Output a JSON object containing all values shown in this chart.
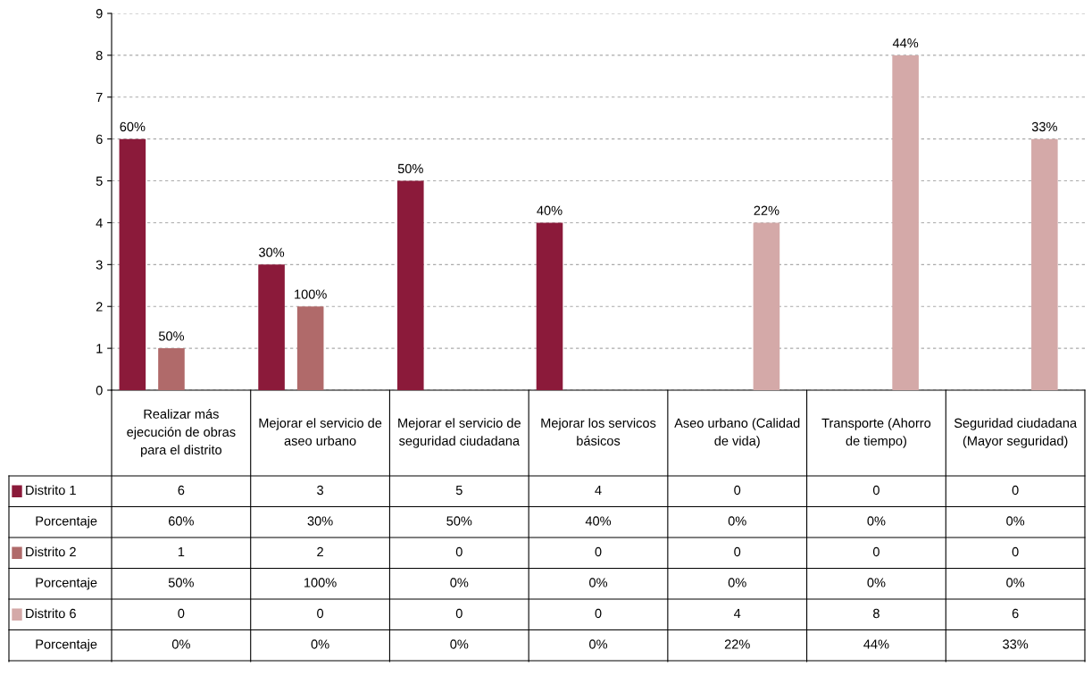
{
  "chart_data": {
    "type": "bar",
    "categories": [
      "Realizar más ejecución de obras para el distrito",
      "Mejorar el servicio de aseo urbano",
      "Mejorar el servicio de seguridad ciudadana",
      "Mejorar los servicos básicos",
      "Aseo urbano (Calidad de vida)",
      "Transporte (Ahorro de tiempo)",
      "Seguridad ciudadana (Mayor seguridad)"
    ],
    "series": [
      {
        "name": "Distrito 1",
        "color": "#8b1a3a",
        "values": [
          6,
          3,
          5,
          4,
          0,
          0,
          0
        ]
      },
      {
        "name": "Distrito 2",
        "color": "#b06a6a",
        "values": [
          1,
          2,
          0,
          0,
          0,
          0,
          0
        ]
      },
      {
        "name": "Distrito 6",
        "color": "#d4a9a8",
        "values": [
          0,
          0,
          0,
          0,
          4,
          8,
          6
        ]
      }
    ],
    "annotations": [
      "Porcentaje",
      "60%",
      "30%",
      "50%",
      "40%",
      "0%",
      "0%",
      "0%",
      "Porcentaje",
      "50%",
      "100%",
      "0%",
      "0%",
      "0%",
      "0%",
      "0%",
      "Porcentaje",
      "0%",
      "0%",
      "0%",
      "0%",
      "22%",
      "44%",
      "33%"
    ],
    "data_labels": true,
    "legend": "bottom left",
    "ylim": [
      0,
      9
    ],
    "yticks": [
      0,
      1,
      2,
      3,
      4,
      5,
      6,
      7,
      8,
      9
    ],
    "grid": "y",
    "tick_labels": "y"
  }
}
